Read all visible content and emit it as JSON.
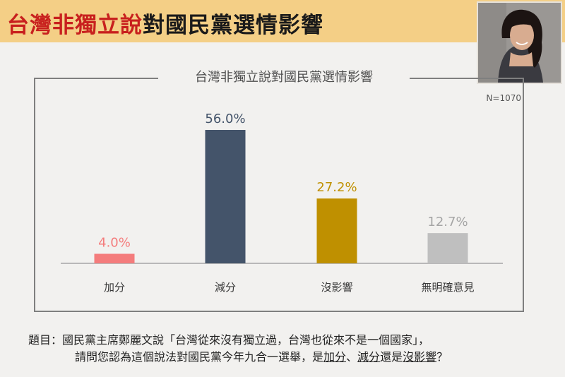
{
  "headline": {
    "part1": "台灣非獨立說",
    "part2": "對國民黨選情影響"
  },
  "colors": {
    "header_bg": "#f4cf86",
    "headline_red": "#c8201e"
  },
  "chart_data": {
    "type": "bar",
    "title": "台灣非獨立說對國民黨選情影響",
    "sample_size": "N=1070",
    "categories": [
      "加分",
      "減分",
      "沒影響",
      "無明確意見"
    ],
    "values": [
      4.0,
      56.0,
      27.2,
      12.7
    ],
    "value_labels": [
      "4.0%",
      "56.0%",
      "27.2%",
      "12.7%"
    ],
    "colors": [
      "#f47c7c",
      "#44546a",
      "#bf9000",
      "#bfbfbf"
    ],
    "label_colors": [
      "#f47c7c",
      "#44546a",
      "#bf9000",
      "#a5a5a5"
    ],
    "ylim": [
      0,
      56
    ],
    "grid": false,
    "legend": "none"
  },
  "question": {
    "line1": "題目：國民黨主席鄭麗文說「台灣從來沒有獨立過，台灣也從來不是一個國家」，",
    "line2_prefix": "請問您認為這個說法對國民黨今年九合一選舉，是",
    "opt_plus": "加分",
    "sep": "、",
    "opt_minus": "減分",
    "mid": "還是",
    "opt_none": "沒影響",
    "end": "？"
  }
}
